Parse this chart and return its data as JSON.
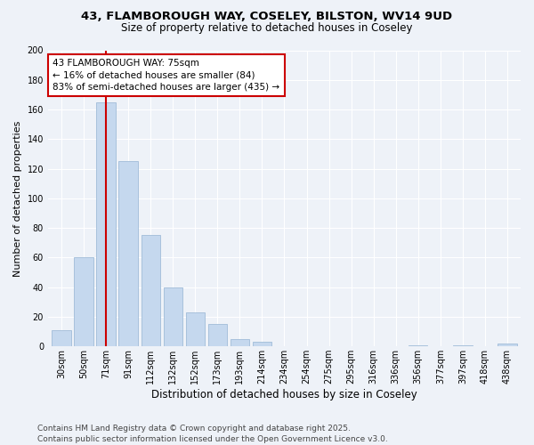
{
  "title1": "43, FLAMBOROUGH WAY, COSELEY, BILSTON, WV14 9UD",
  "title2": "Size of property relative to detached houses in Coseley",
  "xlabel": "Distribution of detached houses by size in Coseley",
  "ylabel": "Number of detached properties",
  "categories": [
    "30sqm",
    "50sqm",
    "71sqm",
    "91sqm",
    "112sqm",
    "132sqm",
    "152sqm",
    "173sqm",
    "193sqm",
    "214sqm",
    "234sqm",
    "254sqm",
    "275sqm",
    "295sqm",
    "316sqm",
    "336sqm",
    "356sqm",
    "377sqm",
    "397sqm",
    "418sqm",
    "438sqm"
  ],
  "values": [
    11,
    60,
    165,
    125,
    75,
    40,
    23,
    15,
    5,
    3,
    0,
    0,
    0,
    0,
    0,
    0,
    1,
    0,
    1,
    0,
    2
  ],
  "bar_color": "#c5d8ee",
  "bar_edge_color": "#a0bcd8",
  "vline_x_index": 2,
  "vline_color": "#cc0000",
  "annotation_text_line1": "43 FLAMBOROUGH WAY: 75sqm",
  "annotation_text_line2": "← 16% of detached houses are smaller (84)",
  "annotation_text_line3": "83% of semi-detached houses are larger (435) →",
  "annotation_box_facecolor": "#ffffff",
  "annotation_box_edgecolor": "#cc0000",
  "ylim": [
    0,
    200
  ],
  "yticks": [
    0,
    20,
    40,
    60,
    80,
    100,
    120,
    140,
    160,
    180,
    200
  ],
  "background_color": "#eef2f8",
  "plot_bg_color": "#eef2f8",
  "grid_color": "#ffffff",
  "footer_line1": "Contains HM Land Registry data © Crown copyright and database right 2025.",
  "footer_line2": "Contains public sector information licensed under the Open Government Licence v3.0.",
  "title1_fontsize": 9.5,
  "title2_fontsize": 8.5,
  "xlabel_fontsize": 8.5,
  "ylabel_fontsize": 8.0,
  "tick_fontsize": 7.0,
  "annotation_fontsize": 7.5,
  "footer_fontsize": 6.5
}
